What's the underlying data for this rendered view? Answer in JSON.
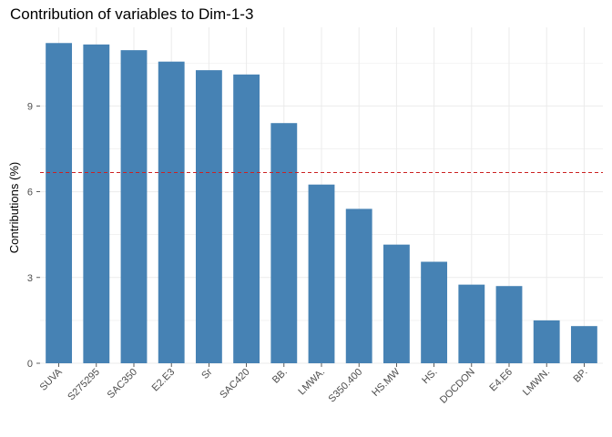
{
  "chart_data": {
    "type": "bar",
    "title": "Contribution of variables to Dim-1-3",
    "xlabel": "",
    "ylabel": "Contributions (%)",
    "categories": [
      "SUVA",
      "S275295",
      "SAC350",
      "E2.E3",
      "Sr",
      "SAC420",
      "BB.",
      "LMWA.",
      "S350.400",
      "HS.MW",
      "HS.",
      "DOCDON",
      "E4.E6",
      "LMWN.",
      "BP."
    ],
    "values": [
      11.2,
      11.15,
      10.95,
      10.55,
      10.25,
      10.1,
      8.4,
      6.25,
      5.4,
      4.15,
      3.55,
      2.75,
      2.7,
      1.5,
      1.3
    ],
    "yticks": [
      0,
      3,
      6,
      9
    ],
    "ylim": [
      0,
      11.75
    ],
    "reference_line": 6.67,
    "grid": true,
    "colors": {
      "bar": "#4682B4",
      "reference_line": "#CC2222",
      "grid": "#EBEBEB"
    }
  }
}
